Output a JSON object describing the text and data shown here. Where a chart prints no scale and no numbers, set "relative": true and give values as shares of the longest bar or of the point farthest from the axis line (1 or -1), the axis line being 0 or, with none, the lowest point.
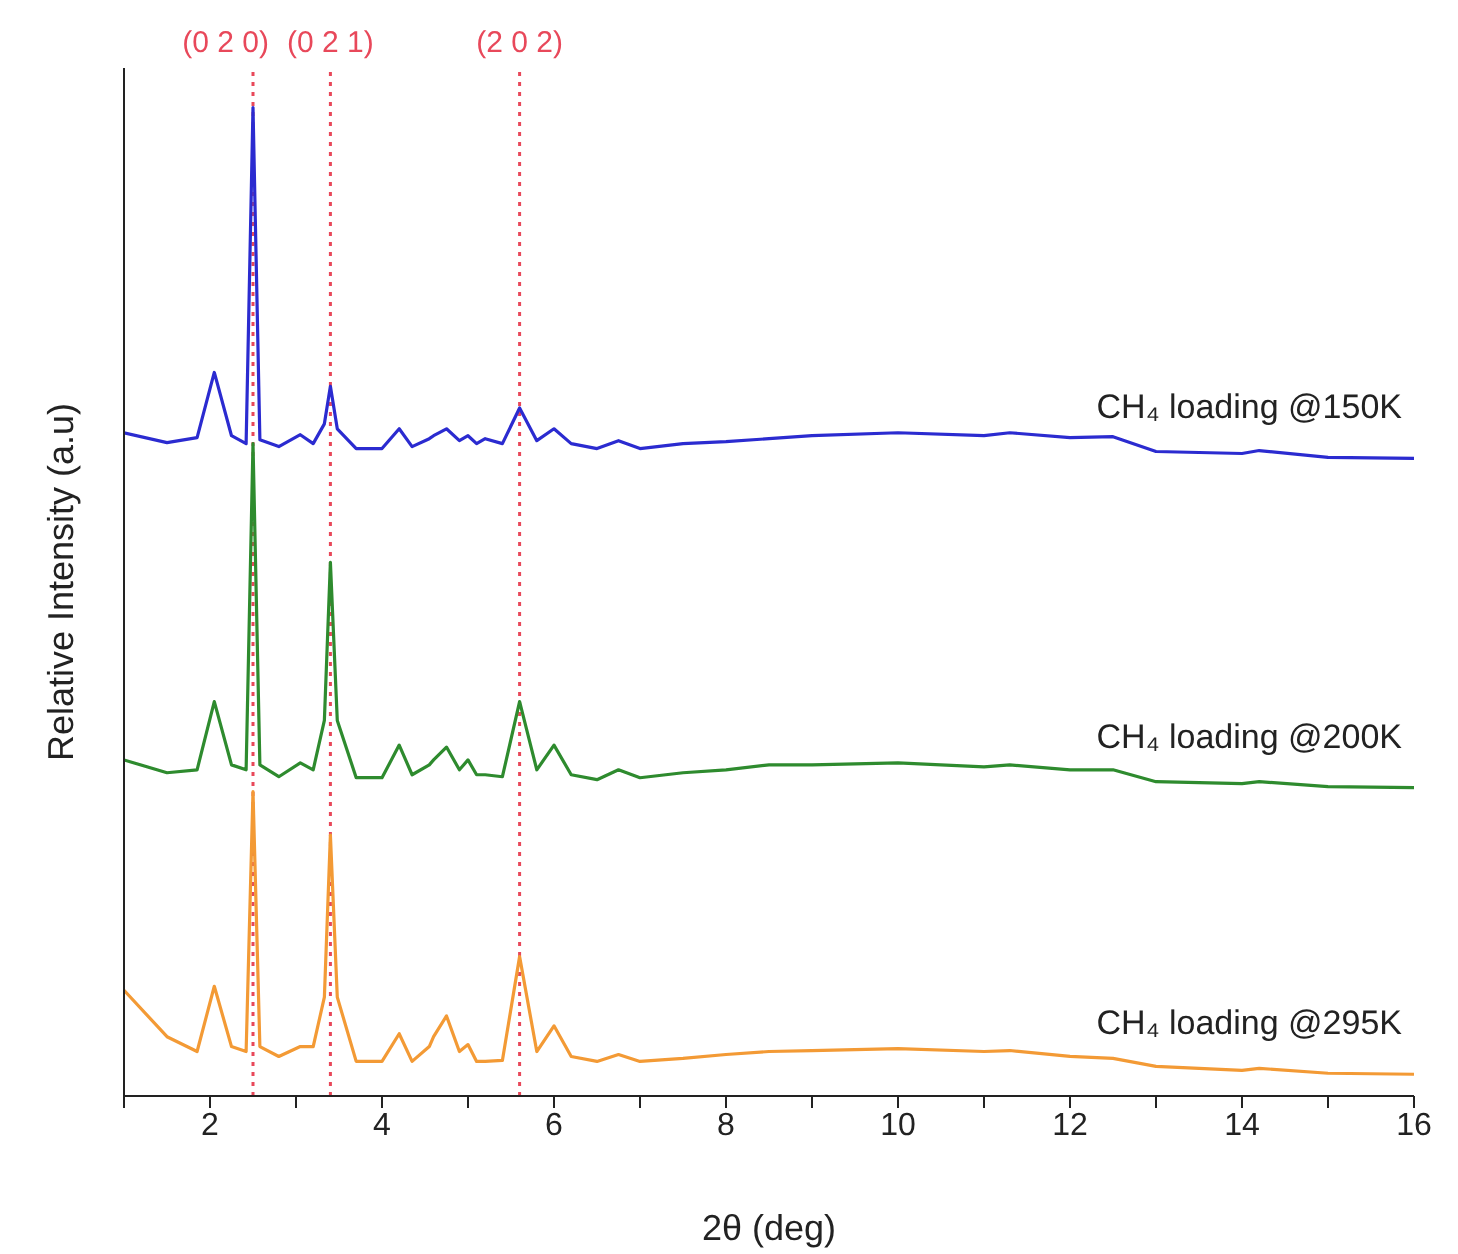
{
  "chart_data": {
    "type": "line",
    "relative": true,
    "xlabel": "2θ  (deg)",
    "ylabel": "Relative Intensity (a.u)",
    "xlim": [
      1,
      16
    ],
    "xticks": [
      {
        "value": 1,
        "label": null
      },
      2,
      {
        "value": 3,
        "label": null
      },
      4,
      {
        "value": 5,
        "label": null
      },
      6,
      {
        "value": 7,
        "label": null
      },
      8,
      {
        "value": 9,
        "label": null
      },
      10,
      {
        "value": 11,
        "label": null
      },
      12,
      {
        "value": 13,
        "label": null
      },
      14,
      {
        "value": 15,
        "label": null
      },
      16
    ],
    "x": [
      1,
      1.5,
      1.85,
      2.05,
      2.25,
      2.42,
      2.5,
      2.58,
      2.8,
      3.05,
      3.2,
      3.33,
      3.4,
      3.48,
      3.7,
      4.0,
      4.2,
      4.35,
      4.55,
      4.6,
      4.75,
      4.9,
      5.0,
      5.1,
      5.2,
      5.4,
      5.6,
      5.8,
      6.0,
      6.2,
      6.5,
      6.75,
      7.0,
      7.5,
      8.0,
      8.5,
      9.0,
      10,
      11,
      11.3,
      12,
      12.5,
      13,
      14,
      14.2,
      15,
      16
    ],
    "series": [
      {
        "name": "CH₄ loading @150K",
        "color": "#2b2bd0",
        "values": [
          0.671,
          0.661,
          0.666,
          0.732,
          0.668,
          0.66,
          1.0,
          0.664,
          0.657,
          0.669,
          0.66,
          0.68,
          0.718,
          0.675,
          0.655,
          0.655,
          0.675,
          0.657,
          0.665,
          0.668,
          0.675,
          0.663,
          0.668,
          0.66,
          0.665,
          0.66,
          0.696,
          0.663,
          0.675,
          0.66,
          0.655,
          0.663,
          0.655,
          0.66,
          0.662,
          0.665,
          0.668,
          0.671,
          0.668,
          0.671,
          0.666,
          0.667,
          0.652,
          0.65,
          0.653,
          0.646,
          0.645
        ]
      },
      {
        "name": "CH₄ loading @200K",
        "color": "#2e8b2e",
        "values": [
          0.34,
          0.327,
          0.33,
          0.399,
          0.335,
          0.33,
          0.66,
          0.335,
          0.323,
          0.337,
          0.33,
          0.38,
          0.54,
          0.38,
          0.322,
          0.322,
          0.355,
          0.325,
          0.335,
          0.34,
          0.353,
          0.33,
          0.34,
          0.325,
          0.325,
          0.323,
          0.399,
          0.33,
          0.355,
          0.325,
          0.32,
          0.33,
          0.322,
          0.327,
          0.33,
          0.335,
          0.335,
          0.337,
          0.333,
          0.335,
          0.33,
          0.33,
          0.318,
          0.316,
          0.318,
          0.313,
          0.312
        ]
      },
      {
        "name": "CH₄ loading @295K",
        "color": "#f39a35",
        "values": [
          0.107,
          0.06,
          0.045,
          0.111,
          0.05,
          0.045,
          0.308,
          0.05,
          0.04,
          0.05,
          0.05,
          0.1,
          0.264,
          0.1,
          0.035,
          0.035,
          0.063,
          0.035,
          0.05,
          0.06,
          0.081,
          0.045,
          0.052,
          0.035,
          0.035,
          0.036,
          0.141,
          0.045,
          0.071,
          0.04,
          0.035,
          0.042,
          0.035,
          0.038,
          0.042,
          0.045,
          0.046,
          0.048,
          0.045,
          0.046,
          0.04,
          0.038,
          0.03,
          0.026,
          0.028,
          0.023,
          0.022
        ]
      }
    ],
    "ref_lines": [
      {
        "axis": "x",
        "value": 2.5,
        "color": "#e8485a",
        "line_style": "dotted"
      },
      {
        "axis": "x",
        "value": 3.4,
        "color": "#e8485a",
        "line_style": "dotted"
      },
      {
        "axis": "x",
        "value": 5.6,
        "color": "#e8485a",
        "line_style": "dotted"
      }
    ],
    "annotations": [
      "(0 2 0)",
      "(0 2 1)",
      "(2 0 2)"
    ],
    "legend": false,
    "grid": false,
    "marker": "none",
    "line_style": "solid"
  }
}
